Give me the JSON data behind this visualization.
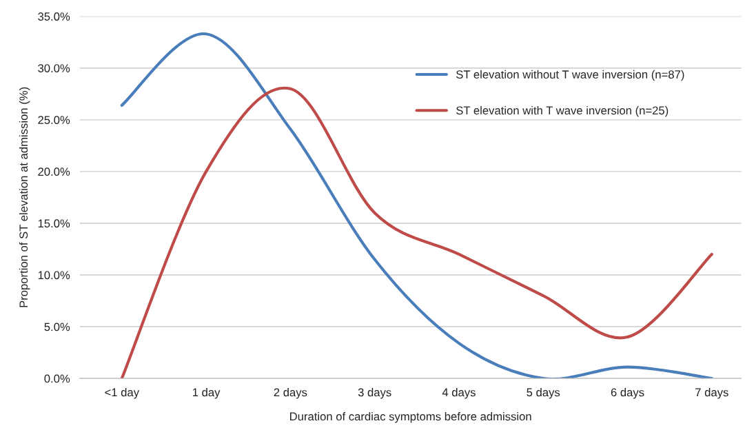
{
  "chart_data": {
    "type": "line",
    "xlabel": "Duration of cardiac symptoms before admission",
    "ylabel": "Proportion of ST elevation at admission (%)",
    "categories": [
      "<1 day",
      "1 day",
      "2 days",
      "3 days",
      "4 days",
      "5 days",
      "6 days",
      "7 days"
    ],
    "series": [
      {
        "name": "ST elevation without T wave inversion (n=87)",
        "color": "#4a7ebb",
        "values": [
          26.4,
          33.3,
          24.1,
          11.5,
          3.4,
          0,
          1.1,
          0
        ]
      },
      {
        "name": "ST elevation with T wave inversion (n=25)",
        "color": "#be4b48",
        "values": [
          0,
          20,
          28,
          16,
          12,
          8,
          4,
          12
        ]
      }
    ],
    "ylim": [
      0,
      35
    ],
    "yticks": [
      {
        "value": 0,
        "label": "0.0%"
      },
      {
        "value": 5,
        "label": "5.0%"
      },
      {
        "value": 10,
        "label": "10.0%"
      },
      {
        "value": 15,
        "label": "15.0%"
      },
      {
        "value": 20,
        "label": "20.0%"
      },
      {
        "value": 25,
        "label": "25.0%"
      },
      {
        "value": 30,
        "label": "30.0%"
      },
      {
        "value": 35,
        "label": "35.0%"
      }
    ],
    "grid": "y",
    "legend": "top right",
    "marker": "none",
    "line_style": "solid"
  }
}
